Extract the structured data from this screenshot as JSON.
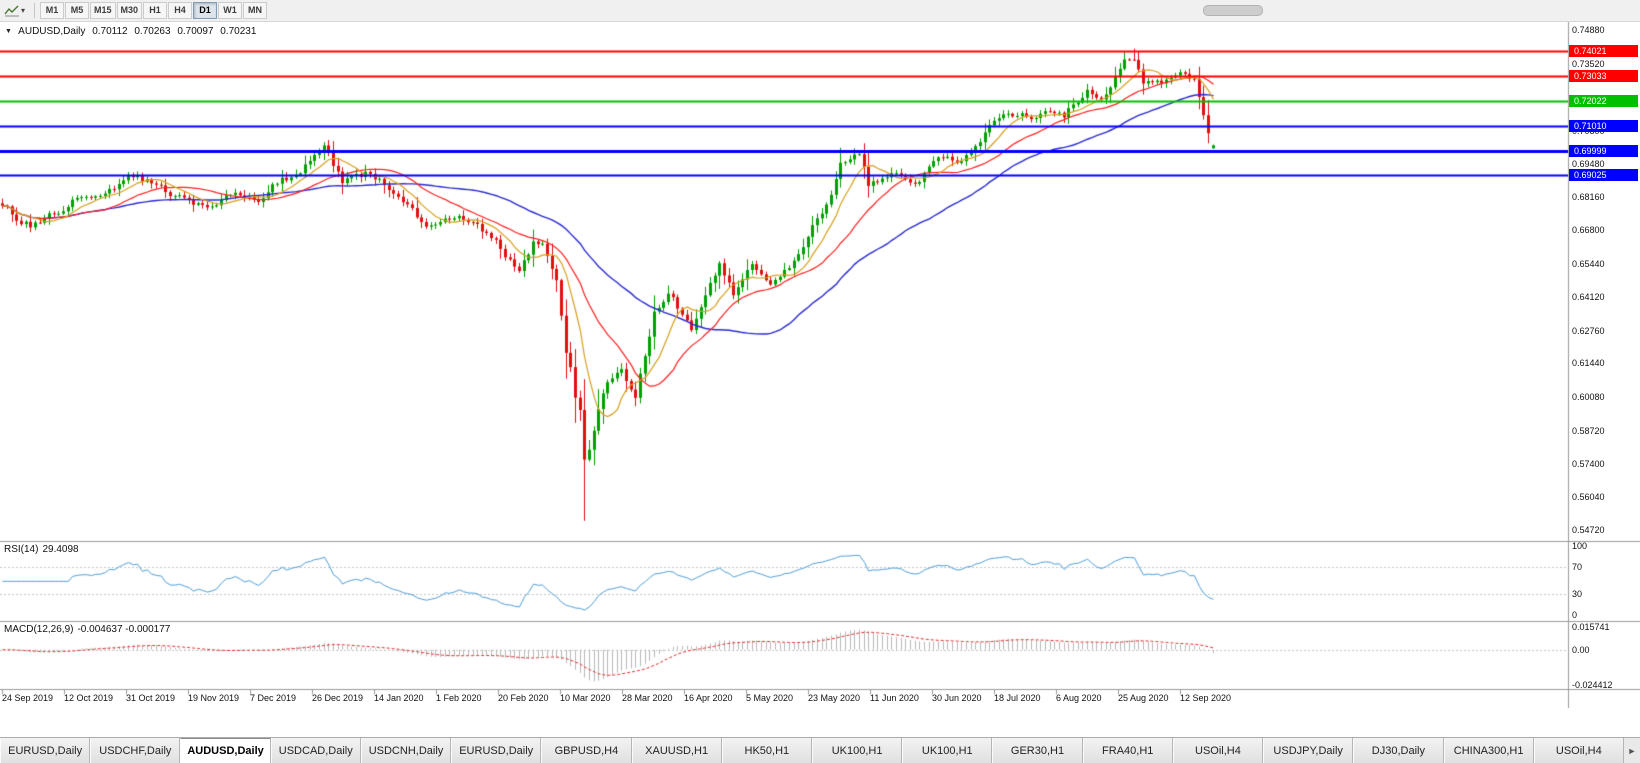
{
  "icons": {
    "toolbar_caret": "▾",
    "header_triangle": "▼",
    "tab_scroll_right": "►"
  },
  "toolbar": {
    "timeframes": [
      "M1",
      "M5",
      "M15",
      "M30",
      "H1",
      "H4",
      "D1",
      "W1",
      "MN"
    ],
    "active_timeframe": "D1"
  },
  "chart": {
    "symbol_period": "AUDUSD,Daily",
    "ohlc": {
      "open": "0.70112",
      "high": "0.70263",
      "low": "0.70097",
      "close": "0.70231"
    },
    "colors": {
      "up": "#00a000",
      "down": "#e01010",
      "ma_fast": "#d8a01d",
      "ma_mid": "#ff2020",
      "ma_slow": "#2a2ad0",
      "hist": "#b8b8b8",
      "signal": "#e03030",
      "rsi": "#4f9fd8"
    },
    "hlines": [
      {
        "price": 0.74021,
        "label": "0.74021",
        "color": "#ff0000",
        "width": 2
      },
      {
        "price": 0.73033,
        "label": "0.73033",
        "color": "#ff0000",
        "width": 2
      },
      {
        "price": 0.72022,
        "label": "0.72022",
        "color": "#00c000",
        "width": 2
      },
      {
        "price": 0.7101,
        "label": "0.71010",
        "color": "#0000ff",
        "width": 2
      },
      {
        "price": 0.69999,
        "label": "0.69999",
        "color": "#0000ff",
        "width": 3
      },
      {
        "price": 0.69025,
        "label": "0.69025",
        "color": "#0000ff",
        "width": 2
      }
    ],
    "price_axis_labels": [
      "0.74880",
      "0.73520",
      "0.70800",
      "0.69480",
      "0.68160",
      "0.66800",
      "0.65440",
      "0.64120",
      "0.62760",
      "0.61440",
      "0.60080",
      "0.58720",
      "0.57400",
      "0.56040",
      "0.54720"
    ],
    "date_axis": [
      "24 Sep 2019",
      "12 Oct 2019",
      "31 Oct 2019",
      "19 Nov 2019",
      "7 Dec 2019",
      "26 Dec 2019",
      "14 Jan 2020",
      "1 Feb 2020",
      "20 Feb 2020",
      "10 Mar 2020",
      "28 Mar 2020",
      "16 Apr 2020",
      "5 May 2020",
      "23 May 2020",
      "11 Jun 2020",
      "30 Jun 2020",
      "18 Jul 2020",
      "6 Aug 2020",
      "25 Aug 2020",
      "12 Sep 2020"
    ],
    "series": {
      "bars": 261,
      "anchors": [
        [
          0,
          0.679
        ],
        [
          3,
          0.674
        ],
        [
          6,
          0.6705
        ],
        [
          12,
          0.676
        ],
        [
          17,
          0.6815
        ],
        [
          22,
          0.6845
        ],
        [
          28,
          0.69
        ],
        [
          33,
          0.686
        ],
        [
          37,
          0.6805
        ],
        [
          42,
          0.679
        ],
        [
          45,
          0.6775
        ],
        [
          50,
          0.6845
        ],
        [
          55,
          0.681
        ],
        [
          59,
          0.688
        ],
        [
          63,
          0.69
        ],
        [
          69,
          0.702
        ],
        [
          73,
          0.6865
        ],
        [
          78,
          0.6905
        ],
        [
          84,
          0.6845
        ],
        [
          88,
          0.6765
        ],
        [
          91,
          0.669
        ],
        [
          95,
          0.674
        ],
        [
          101,
          0.6715
        ],
        [
          106,
          0.6625
        ],
        [
          111,
          0.6515
        ],
        [
          114,
          0.6625
        ],
        [
          116,
          0.664
        ],
        [
          117,
          0.6585
        ],
        [
          119,
          0.649
        ],
        [
          121,
          0.6185
        ],
        [
          122,
          0.612
        ],
        [
          123,
          0.599
        ],
        [
          124,
          0.5955
        ],
        [
          125,
          0.5745
        ],
        [
          126,
          0.58
        ],
        [
          128,
          0.5965
        ],
        [
          130,
          0.6075
        ],
        [
          133,
          0.6135
        ],
        [
          136,
          0.5995
        ],
        [
          140,
          0.635
        ],
        [
          143,
          0.6435
        ],
        [
          148,
          0.629
        ],
        [
          154,
          0.655
        ],
        [
          157,
          0.6425
        ],
        [
          161,
          0.6535
        ],
        [
          165,
          0.6455
        ],
        [
          170,
          0.6565
        ],
        [
          173,
          0.6655
        ],
        [
          177,
          0.6795
        ],
        [
          180,
          0.694
        ],
        [
          184,
          0.7
        ],
        [
          186,
          0.6855
        ],
        [
          188,
          0.6885
        ],
        [
          192,
          0.692
        ],
        [
          196,
          0.6865
        ],
        [
          198,
          0.6905
        ],
        [
          202,
          0.6975
        ],
        [
          206,
          0.695
        ],
        [
          209,
          0.701
        ],
        [
          214,
          0.714
        ],
        [
          217,
          0.715
        ],
        [
          221,
          0.714
        ],
        [
          223,
          0.716
        ],
        [
          228,
          0.7145
        ],
        [
          233,
          0.7235
        ],
        [
          236,
          0.7195
        ],
        [
          241,
          0.7365
        ],
        [
          243,
          0.7375
        ],
        [
          245,
          0.727
        ],
        [
          249,
          0.7285
        ],
        [
          253,
          0.73
        ],
        [
          256,
          0.729
        ],
        [
          257,
          0.722
        ],
        [
          258,
          0.715
        ],
        [
          259,
          0.7075
        ],
        [
          260,
          0.7023
        ]
      ],
      "low_spike": {
        "index": 125,
        "low": 0.551
      },
      "high_spike": {
        "index": 243,
        "high": 0.7413
      }
    }
  },
  "rsi": {
    "name": "RSI(14)",
    "value": "29.4098",
    "period": 14,
    "scale": [
      "100",
      "70",
      "30",
      "0"
    ],
    "levels": [
      70,
      30
    ]
  },
  "macd": {
    "name": "MACD(12,26,9)",
    "values": "-0.004637 -0.000177",
    "scale": [
      {
        "label": "0.015741",
        "value": 0.015741
      },
      {
        "label": "0.00",
        "value": 0
      },
      {
        "label": "-0.024412",
        "value": -0.024412
      }
    ]
  },
  "tabs": {
    "items": [
      "EURUSD,Daily",
      "USDCHF,Daily",
      "AUDUSD,Daily",
      "USDCAD,Daily",
      "USDCNH,Daily",
      "EURUSD,Daily",
      "GBPUSD,H4",
      "XAUUSD,H1",
      "HK50,H1",
      "UK100,H1",
      "UK100,H1",
      "GER30,H1",
      "FRA40,H1",
      "USOil,H4",
      "USDJPY,Daily",
      "DJ30,Daily",
      "CHINA300,H1",
      "USOil,H4"
    ],
    "active_index": 2
  }
}
